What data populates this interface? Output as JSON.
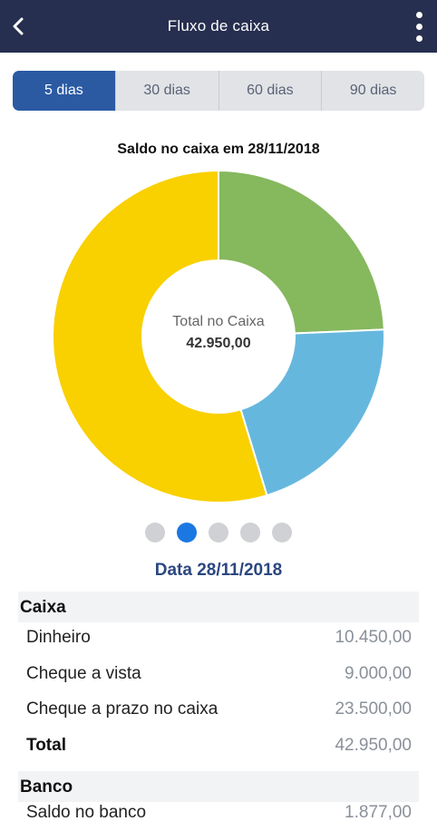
{
  "header": {
    "title": "Fluxo de caixa",
    "back_icon": "chevron-left-icon",
    "menu_icon": "more-vertical-icon"
  },
  "tabs": [
    {
      "label": "5 dias",
      "active": true
    },
    {
      "label": "30 dias",
      "active": false
    },
    {
      "label": "60 dias",
      "active": false
    },
    {
      "label": "90 dias",
      "active": false
    }
  ],
  "chart": {
    "title": "Saldo no caixa em 28/11/2018",
    "center_label": "Total no Caixa",
    "center_value": "42.950,00"
  },
  "chart_data": {
    "type": "pie",
    "title": "Saldo no caixa em 28/11/2018",
    "labels": [
      "Dinheiro",
      "Cheque a vista",
      "Cheque a prazo no caixa"
    ],
    "values": [
      10450,
      9000,
      23500
    ],
    "colors": [
      "#86b85e",
      "#66b7de",
      "#f9d000"
    ],
    "donut": true
  },
  "pager": {
    "count": 5,
    "active_index": 1
  },
  "date_heading": "Data 28/11/2018",
  "caixa": {
    "title": "Caixa",
    "rows": [
      {
        "label": "Dinheiro",
        "value": "10.450,00"
      },
      {
        "label": "Cheque a vista",
        "value": "9.000,00"
      },
      {
        "label": "Cheque a prazo no caixa",
        "value": "23.500,00"
      }
    ],
    "total_label": "Total",
    "total_value": "42.950,00"
  },
  "banco": {
    "title": "Banco",
    "rows": [
      {
        "label": "Saldo no banco",
        "value": "1.877,00"
      }
    ]
  }
}
